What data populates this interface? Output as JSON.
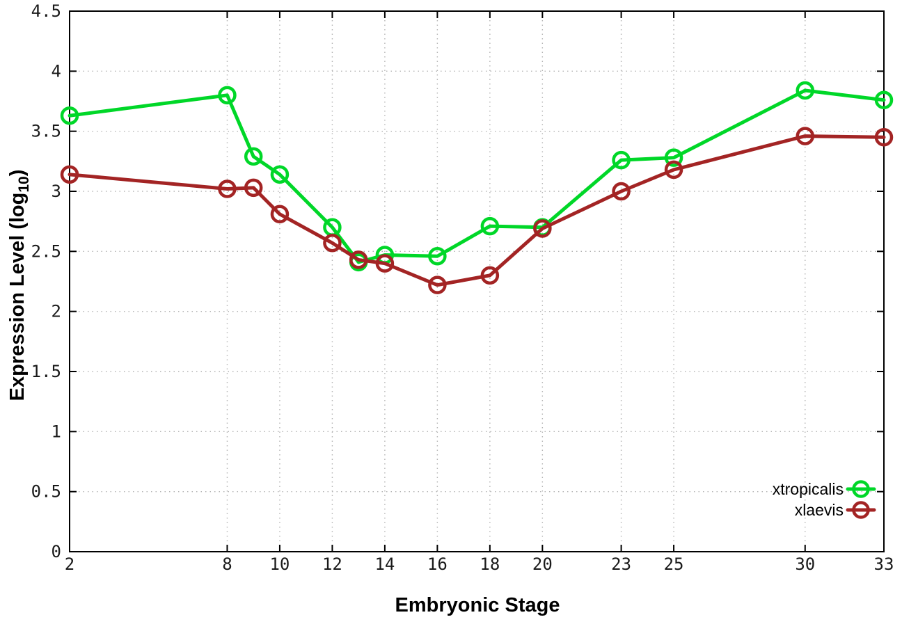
{
  "labels": {
    "xlabel": "Embryonic Stage",
    "ylabel_main": "Expression Level (log",
    "ylabel_sub": "10",
    "ylabel_close": ")"
  },
  "chart_data": {
    "type": "line",
    "title": "",
    "xlabel": "Embryonic Stage",
    "ylabel": "Expression Level (log10)",
    "x": [
      2,
      8,
      9,
      10,
      12,
      13,
      14,
      16,
      18,
      20,
      23,
      25,
      30,
      33
    ],
    "series": [
      {
        "name": "xtropicalis",
        "color": "#00d728",
        "marker": "open-circle",
        "values": [
          3.63,
          3.8,
          3.29,
          3.14,
          2.7,
          2.41,
          2.47,
          2.46,
          2.71,
          2.7,
          3.26,
          3.28,
          3.84,
          3.76
        ]
      },
      {
        "name": "xlaevis",
        "color": "#a32424",
        "marker": "open-circle",
        "values": [
          3.14,
          3.02,
          3.03,
          2.81,
          2.57,
          2.43,
          2.4,
          2.22,
          2.3,
          2.69,
          3.0,
          3.18,
          3.46,
          3.45
        ]
      }
    ],
    "xlim": [
      2,
      33
    ],
    "ylim": [
      0,
      4.5
    ],
    "xticks": [
      2,
      8,
      10,
      12,
      14,
      16,
      18,
      20,
      23,
      25,
      30,
      33
    ],
    "yticks": [
      0,
      0.5,
      1,
      1.5,
      2,
      2.5,
      3,
      3.5,
      4,
      4.5
    ],
    "grid": true,
    "grid_style": "dotted",
    "legend_position": "bottom-right",
    "border_color": "#000000",
    "grid_color": "#b4b4b4",
    "background_color": "#ffffff"
  }
}
